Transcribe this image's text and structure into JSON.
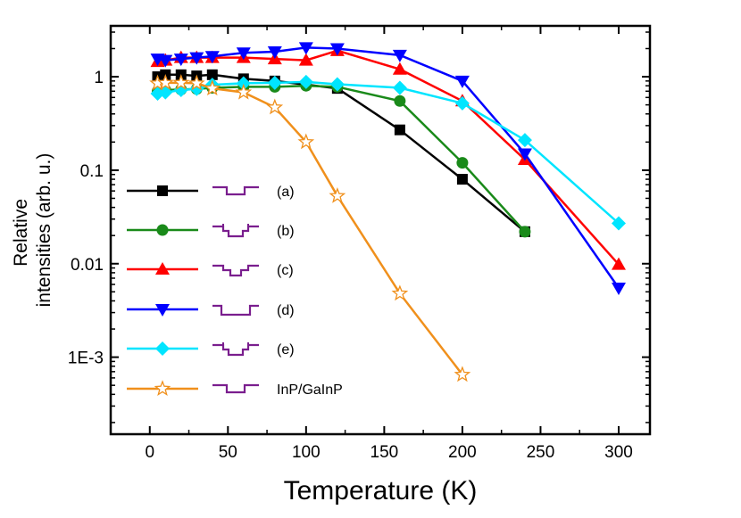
{
  "chart_data": {
    "type": "line",
    "y_scale": "log",
    "xlabel": "Temperature (K)",
    "ylabel": [
      "Relative",
      "intensities (arb. u.)"
    ],
    "xlim": [
      -25,
      320
    ],
    "ylim": [
      0.00015,
      3.5
    ],
    "xticks": [
      0,
      50,
      100,
      150,
      200,
      250,
      300
    ],
    "yticks": [
      {
        "value": 1,
        "label": "1"
      },
      {
        "value": 0.1,
        "label": "0.1"
      },
      {
        "value": 0.01,
        "label": "0.01"
      },
      {
        "value": 0.001,
        "label": "1E-3"
      }
    ],
    "legend_position": "lower-left",
    "series": [
      {
        "name": "(a)",
        "color": "#000000",
        "marker": "square",
        "profile": "single",
        "x": [
          5,
          10,
          20,
          30,
          40,
          60,
          80,
          120,
          160,
          200,
          240
        ],
        "y": [
          1.0,
          1.05,
          1.05,
          1.02,
          1.05,
          0.95,
          0.9,
          0.75,
          0.27,
          0.08,
          0.022
        ]
      },
      {
        "name": "(b)",
        "color": "#1a8a1a",
        "marker": "circle",
        "profile": "steps",
        "x": [
          5,
          10,
          20,
          30,
          40,
          60,
          80,
          100,
          120,
          160,
          200,
          240
        ],
        "y": [
          0.7,
          0.72,
          0.73,
          0.74,
          0.76,
          0.78,
          0.78,
          0.8,
          0.78,
          0.55,
          0.12,
          0.022
        ]
      },
      {
        "name": "(c)",
        "color": "#ff0000",
        "marker": "triangle-up",
        "profile": "double",
        "x": [
          5,
          10,
          20,
          30,
          40,
          60,
          80,
          100,
          120,
          160,
          200,
          240,
          300
        ],
        "y": [
          1.45,
          1.5,
          1.6,
          1.6,
          1.6,
          1.6,
          1.55,
          1.5,
          1.9,
          1.2,
          0.55,
          0.13,
          0.0098
        ]
      },
      {
        "name": "(d)",
        "color": "#0000ff",
        "marker": "triangle-down",
        "profile": "wide",
        "x": [
          5,
          10,
          20,
          30,
          40,
          60,
          80,
          100,
          120,
          160,
          200,
          240,
          300
        ],
        "y": [
          1.55,
          1.5,
          1.55,
          1.6,
          1.65,
          1.8,
          1.85,
          2.05,
          2.0,
          1.7,
          0.9,
          0.15,
          0.0055
        ]
      },
      {
        "name": "(e)",
        "color": "#00e5ff",
        "marker": "diamond",
        "profile": "steps",
        "x": [
          5,
          10,
          20,
          30,
          40,
          60,
          80,
          100,
          120,
          160,
          200,
          240,
          300
        ],
        "y": [
          0.66,
          0.68,
          0.72,
          0.74,
          0.82,
          0.85,
          0.86,
          0.88,
          0.83,
          0.76,
          0.52,
          0.21,
          0.027
        ]
      },
      {
        "name": "InP/GaInP",
        "color": "#f0901c",
        "marker": "star",
        "profile": "single",
        "x": [
          5,
          10,
          20,
          30,
          40,
          60,
          80,
          100,
          120,
          160,
          200
        ],
        "y": [
          0.85,
          0.86,
          0.86,
          0.85,
          0.75,
          0.68,
          0.47,
          0.2,
          0.053,
          0.0048,
          0.00065
        ]
      }
    ]
  },
  "colors": {
    "profile_icon": "#7a1e8e"
  }
}
